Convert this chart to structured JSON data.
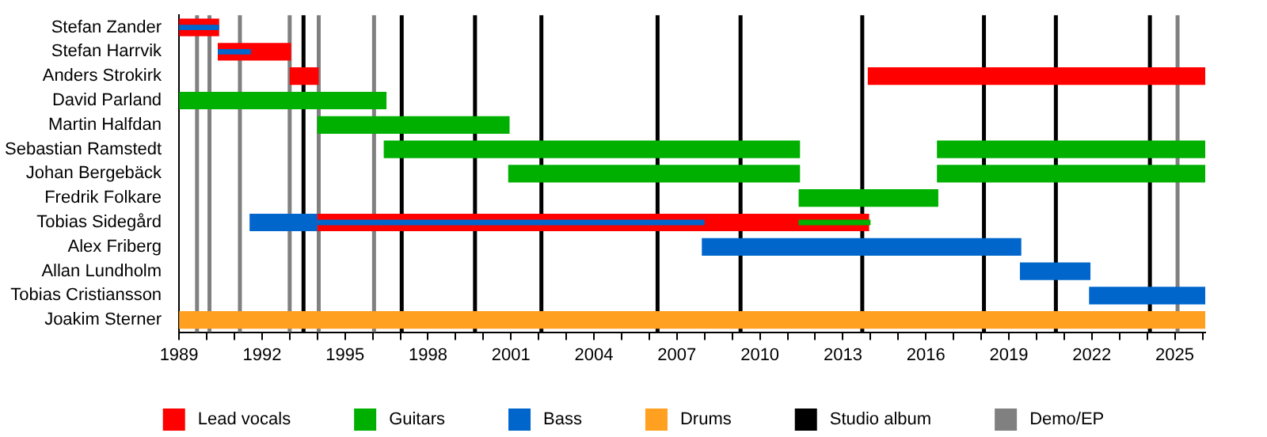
{
  "chart_data": {
    "type": "bar",
    "orientation": "horizontal",
    "legend": "bottom",
    "categories": [
      "Stefan Zander",
      "Stefan Harrvik",
      "Anders Strokirk",
      "David Parland",
      "Martin Halfdan",
      "Sebastian Ramstedt",
      "Johan Bergebäck",
      "Fredrik Folkare",
      "Tobias Sidegård",
      "Alex Friberg",
      "Allan Lundholm",
      "Tobias Cristiansson",
      "Joakim Sterner"
    ],
    "xlim": [
      1989,
      2026.1
    ],
    "xticks": [
      1989,
      {
        "value": 1990,
        "label": null
      },
      {
        "value": 1991,
        "label": null
      },
      1992,
      {
        "value": 1993,
        "label": null
      },
      {
        "value": 1994,
        "label": null
      },
      1995,
      {
        "value": 1996,
        "label": null
      },
      {
        "value": 1997,
        "label": null
      },
      1998,
      {
        "value": 1999,
        "label": null
      },
      {
        "value": 2000,
        "label": null
      },
      2001,
      {
        "value": 2002,
        "label": null
      },
      {
        "value": 2003,
        "label": null
      },
      2004,
      {
        "value": 2005,
        "label": null
      },
      {
        "value": 2006,
        "label": null
      },
      2007,
      {
        "value": 2008,
        "label": null
      },
      {
        "value": 2009,
        "label": null
      },
      2010,
      {
        "value": 2011,
        "label": null
      },
      {
        "value": 2012,
        "label": null
      },
      2013,
      {
        "value": 2014,
        "label": null
      },
      {
        "value": 2015,
        "label": null
      },
      2016,
      {
        "value": 2017,
        "label": null
      },
      {
        "value": 2018,
        "label": null
      },
      2019,
      {
        "value": 2020,
        "label": null
      },
      {
        "value": 2021,
        "label": null
      },
      2022,
      {
        "value": 2023,
        "label": null
      },
      {
        "value": 2024,
        "label": null
      },
      2025,
      {
        "value": 2026,
        "label": null
      }
    ],
    "series": [
      {
        "name": "Lead vocals",
        "color": "#ff0000",
        "base": [
          1989,
          1990.4,
          1993,
          null,
          null,
          null,
          null,
          null,
          1994,
          null,
          null,
          null,
          null
        ],
        "values": [
          1.45,
          2.65,
          1.05,
          null,
          null,
          null,
          null,
          null,
          19.95,
          null,
          null,
          null,
          null
        ]
      },
      {
        "color": "#ff0000",
        "base": [
          null,
          null,
          2013.9,
          null,
          null,
          null,
          null,
          null,
          null,
          null,
          null,
          null,
          null
        ],
        "values": [
          null,
          null,
          12.2,
          null,
          null,
          null,
          null,
          null,
          null,
          null,
          null,
          null,
          null
        ]
      },
      {
        "name": "Guitars",
        "color": "#00b000",
        "base": [
          null,
          null,
          null,
          1989,
          1994,
          1996.4,
          2000.9,
          2011.4,
          null,
          null,
          null,
          null,
          null
        ],
        "values": [
          null,
          null,
          null,
          7.5,
          6.95,
          15.05,
          10.55,
          5.05,
          null,
          null,
          null,
          null,
          null
        ]
      },
      {
        "color": "#00b000",
        "base": [
          null,
          null,
          null,
          null,
          null,
          2016.4,
          2016.4,
          null,
          null,
          null,
          null,
          null,
          null
        ],
        "values": [
          null,
          null,
          null,
          null,
          null,
          9.7,
          9.7,
          null,
          null,
          null,
          null,
          null,
          null
        ]
      },
      {
        "name": "Bass",
        "color": "#0066cc",
        "base": [
          null,
          null,
          null,
          null,
          null,
          null,
          null,
          null,
          1991.55,
          2007.9,
          2019.4,
          2021.9,
          null
        ],
        "values": [
          null,
          null,
          null,
          null,
          null,
          null,
          null,
          null,
          2.45,
          11.55,
          2.55,
          4.2,
          null
        ]
      },
      {
        "name": "Drums",
        "color": "#ffa020",
        "base": [
          null,
          null,
          null,
          null,
          null,
          null,
          null,
          null,
          null,
          null,
          null,
          null,
          1989
        ],
        "values": [
          null,
          null,
          null,
          null,
          null,
          null,
          null,
          null,
          null,
          null,
          null,
          null,
          37.1
        ]
      },
      {
        "color": "#0066cc",
        "base": [
          1989,
          1990.4,
          null,
          null,
          null,
          null,
          null,
          null,
          1994,
          null,
          null,
          null,
          null
        ],
        "values": [
          1.45,
          1.2,
          null,
          null,
          null,
          null,
          null,
          null,
          14,
          null,
          null,
          null,
          null
        ]
      },
      {
        "color": "#00b000",
        "base": [
          null,
          null,
          null,
          null,
          null,
          null,
          null,
          null,
          2011.4,
          null,
          null,
          null,
          null
        ],
        "values": [
          null,
          null,
          null,
          null,
          null,
          null,
          null,
          null,
          2.6,
          null,
          null,
          null,
          null
        ]
      }
    ],
    "ref_lines": [
      {
        "axis": "x",
        "value": 1993.5,
        "label": "Studio album",
        "color": "#000000"
      },
      {
        "axis": "x",
        "value": 1997.05,
        "color": "#000000"
      },
      {
        "axis": "x",
        "value": 1999.7,
        "color": "#000000"
      },
      {
        "axis": "x",
        "value": 2002.1,
        "color": "#000000"
      },
      {
        "axis": "x",
        "value": 2006.3,
        "color": "#000000"
      },
      {
        "axis": "x",
        "value": 2009.3,
        "color": "#000000"
      },
      {
        "axis": "x",
        "value": 2013.7,
        "color": "#000000"
      },
      {
        "axis": "x",
        "value": 2018.1,
        "color": "#000000"
      },
      {
        "axis": "x",
        "value": 2020.7,
        "color": "#000000"
      },
      {
        "axis": "x",
        "value": 2024.1,
        "color": "#000000"
      },
      {
        "axis": "x",
        "value": 1989.65,
        "label": "Demo/EP",
        "color": "#808080"
      },
      {
        "axis": "x",
        "value": 1990.1,
        "color": "#808080"
      },
      {
        "axis": "x",
        "value": 1991.2,
        "color": "#808080"
      },
      {
        "axis": "x",
        "value": 1993,
        "color": "#808080"
      },
      {
        "axis": "x",
        "value": 1994.05,
        "color": "#808080"
      },
      {
        "axis": "x",
        "value": 1996.05,
        "color": "#808080"
      },
      {
        "axis": "x",
        "value": 2025.1,
        "color": "#808080"
      }
    ]
  }
}
